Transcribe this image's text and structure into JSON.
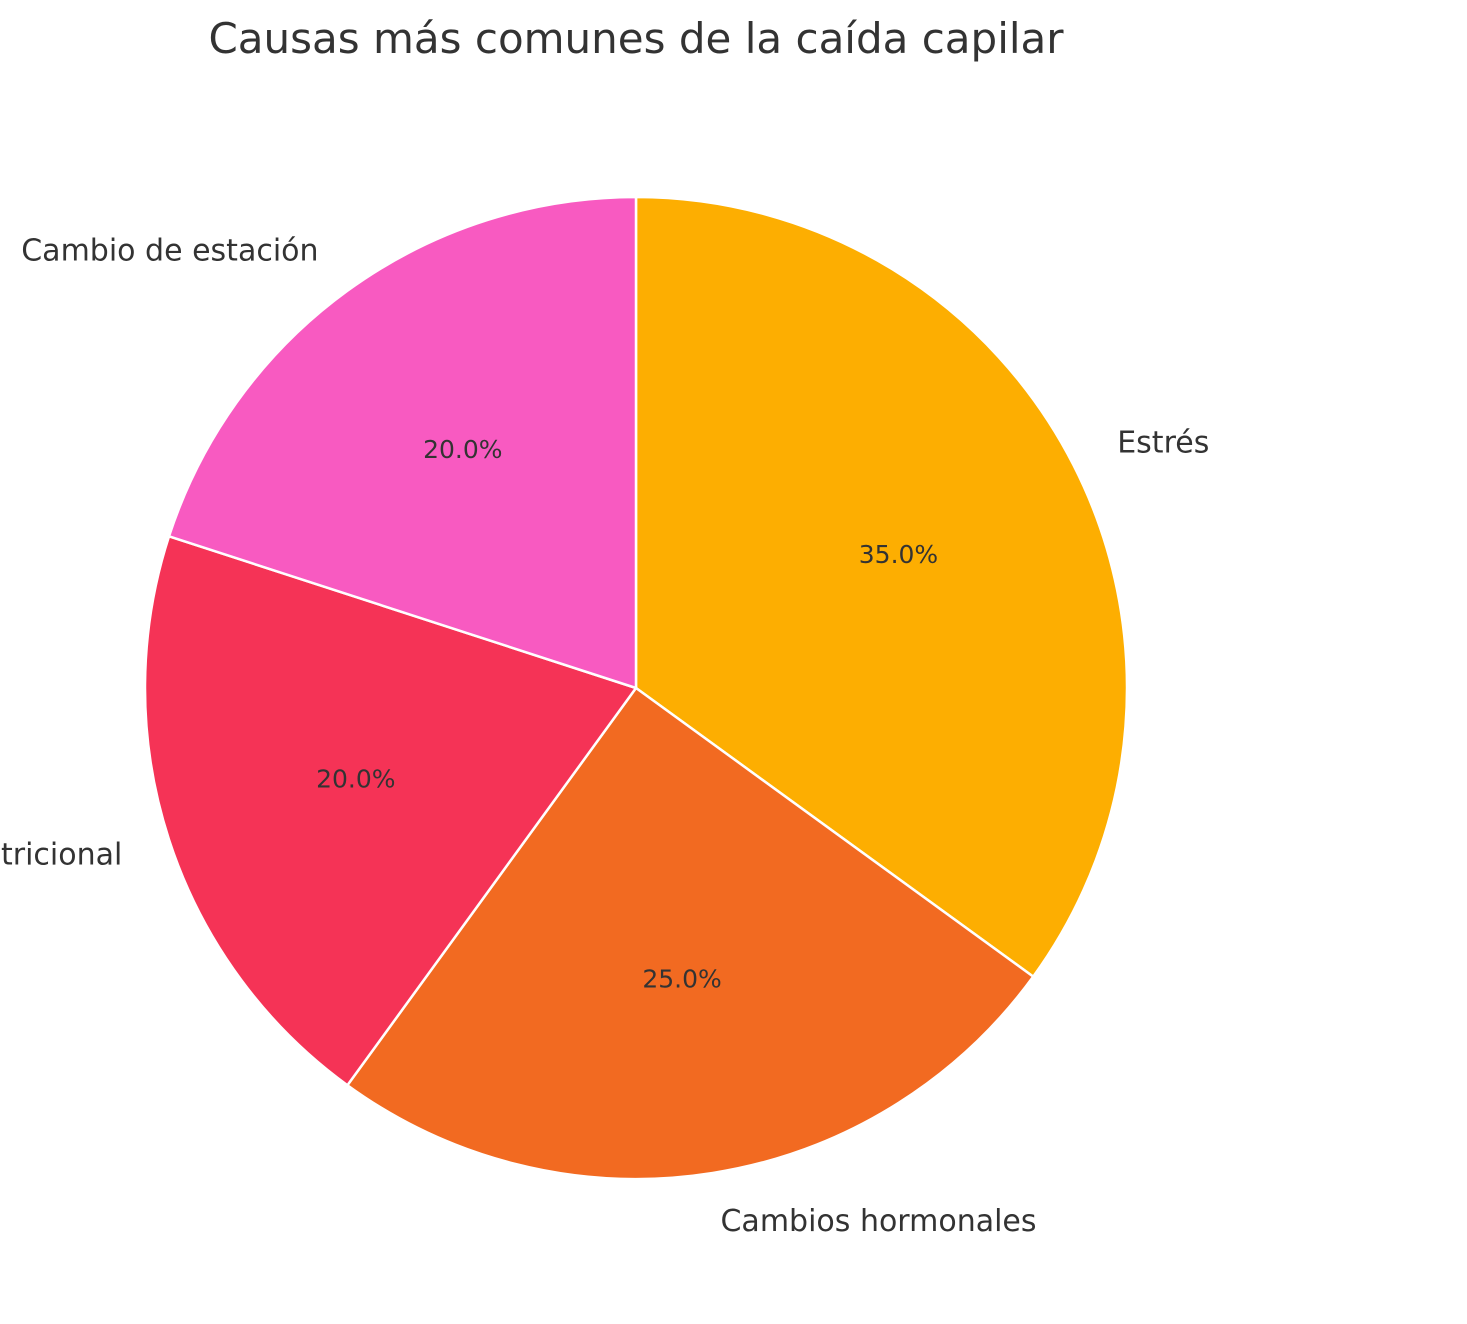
{
  "chart_data": {
    "type": "pie",
    "title": "Causas más comunes de la caída capilar",
    "start_angle": "90° (top), clockwise",
    "slices": [
      {
        "label": "Estrés",
        "value": 35.0,
        "pct_label": "35.0%",
        "color": "#FDAE01"
      },
      {
        "label": "Cambios hormonales",
        "value": 25.0,
        "pct_label": "25.0%",
        "color": "#F26A21"
      },
      {
        "label": "Déficit nutricional",
        "value": 20.0,
        "pct_label": "20.0%",
        "color": "#F53356"
      },
      {
        "label": "Cambio de estación",
        "value": 20.0,
        "pct_label": "20.0%",
        "color": "#F85AC1"
      }
    ]
  }
}
